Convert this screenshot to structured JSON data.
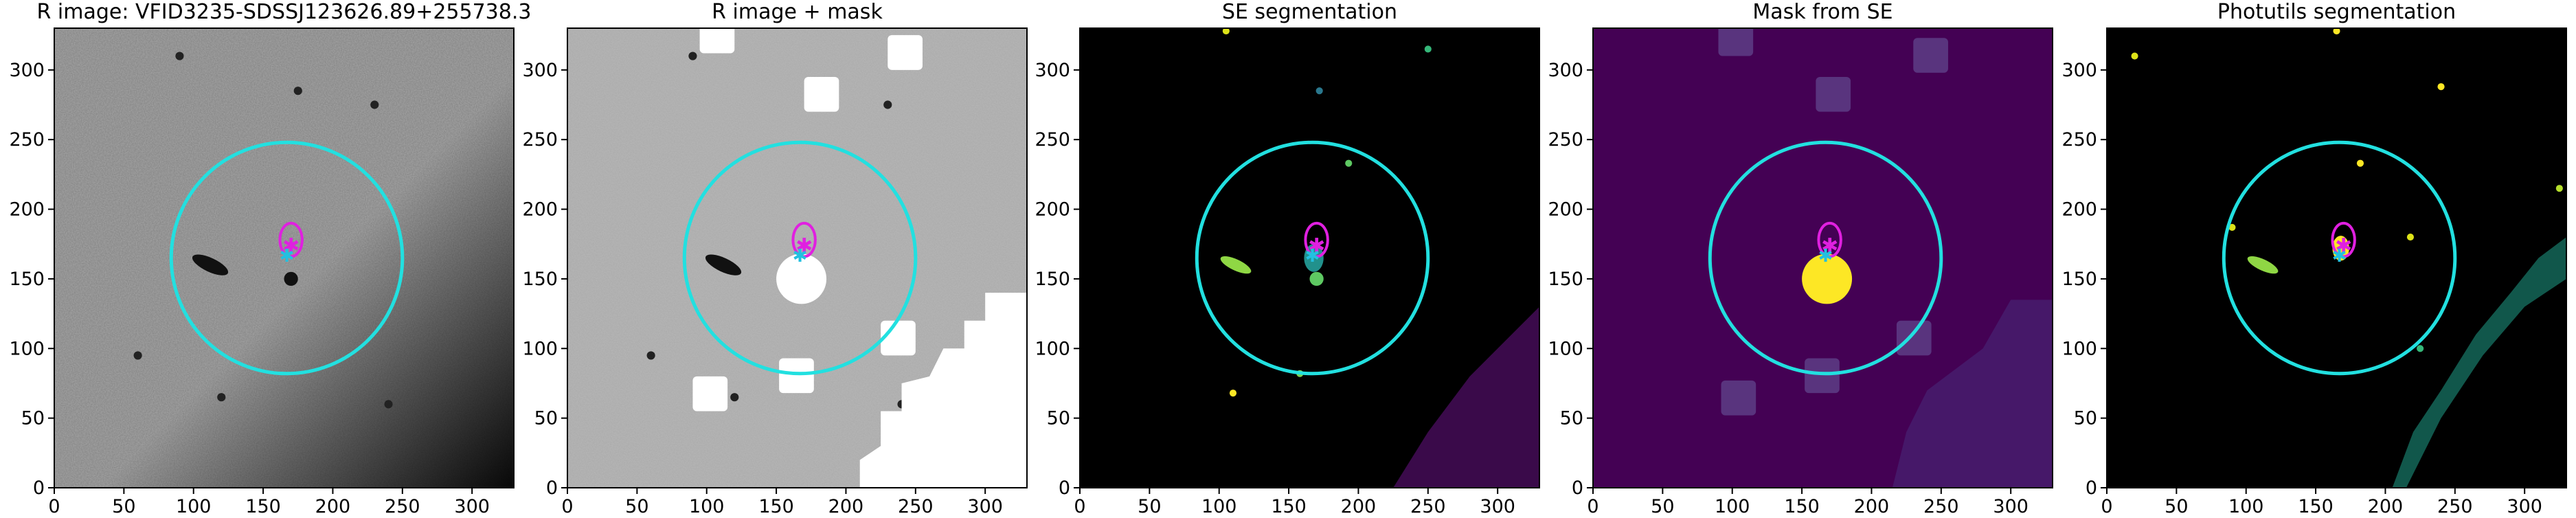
{
  "chart_data": [
    {
      "type": "image",
      "title": "R image: VFID3235-SDSSJ123626.89+255738.3",
      "xlim": [
        0,
        330
      ],
      "ylim": [
        0,
        330
      ],
      "xticks": [
        0,
        50,
        100,
        150,
        200,
        250,
        300
      ],
      "yticks": [
        0,
        50,
        100,
        150,
        200,
        250,
        300
      ],
      "circle": [
        167,
        165,
        83
      ],
      "ellipse": [
        170,
        178,
        8,
        12
      ]
    },
    {
      "type": "image",
      "title": "R image + mask",
      "xlim": [
        0,
        330
      ],
      "ylim": [
        0,
        330
      ],
      "xticks": [
        0,
        50,
        100,
        150,
        200,
        250,
        300
      ],
      "yticks": [
        0,
        50,
        100,
        150,
        200,
        250,
        300
      ],
      "circle": [
        167,
        165,
        83
      ],
      "ellipse": [
        170,
        178,
        8,
        12
      ]
    },
    {
      "type": "image",
      "title": "SE segmentation",
      "xlim": [
        0,
        330
      ],
      "ylim": [
        0,
        330
      ],
      "xticks": [
        0,
        50,
        100,
        150,
        200,
        250,
        300
      ],
      "yticks": [
        0,
        50,
        100,
        150,
        200,
        250,
        300
      ],
      "circle": [
        167,
        165,
        83
      ],
      "ellipse": [
        170,
        178,
        8,
        12
      ]
    },
    {
      "type": "image",
      "title": "Mask from SE",
      "xlim": [
        0,
        330
      ],
      "ylim": [
        0,
        330
      ],
      "xticks": [
        0,
        50,
        100,
        150,
        200,
        250,
        300
      ],
      "yticks": [
        0,
        50,
        100,
        150,
        200,
        250,
        300
      ],
      "circle": [
        167,
        165,
        83
      ],
      "ellipse": [
        170,
        178,
        8,
        12
      ]
    },
    {
      "type": "image",
      "title": "Photutils segmentation",
      "xlim": [
        0,
        330
      ],
      "ylim": [
        0,
        330
      ],
      "xticks": [
        0,
        50,
        100,
        150,
        200,
        250,
        300
      ],
      "yticks": [
        0,
        50,
        100,
        150,
        200,
        250,
        300
      ],
      "circle": [
        167,
        165,
        83
      ],
      "ellipse": [
        170,
        178,
        8,
        12
      ]
    }
  ]
}
